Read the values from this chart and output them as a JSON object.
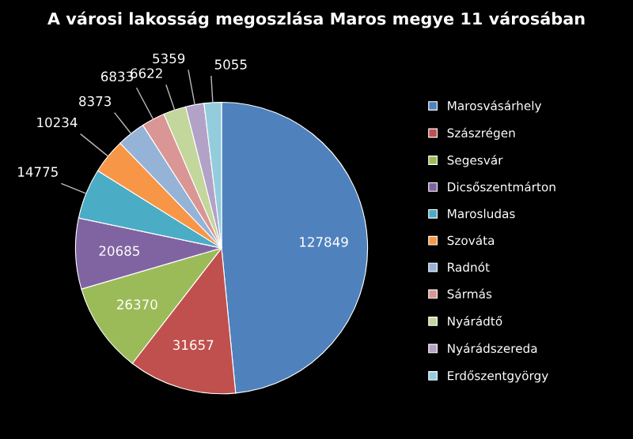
{
  "chart_data": {
    "type": "pie",
    "title": "A városi lakosság megoszlása Maros megye 11 városában",
    "categories": [
      "Marosvásárhely",
      "Szászrégen",
      "Segesvár",
      "Dicsőszentmárton",
      "Marosludas",
      "Szováta",
      "Radnót",
      "Sármás",
      "Nyárádtő",
      "Nyárádszereda",
      "Erdőszentgyörgy"
    ],
    "values": [
      127849,
      31657,
      26370,
      20685,
      14775,
      10234,
      8373,
      6833,
      6622,
      5359,
      5055
    ],
    "colors": [
      "#4f81bd",
      "#c0504d",
      "#9bbb59",
      "#8064a2",
      "#4bacc6",
      "#f79646",
      "#95b3d7",
      "#d99694",
      "#c3d69b",
      "#b3a2c7",
      "#93cddd"
    ],
    "data_labels": true,
    "legend": "right"
  }
}
